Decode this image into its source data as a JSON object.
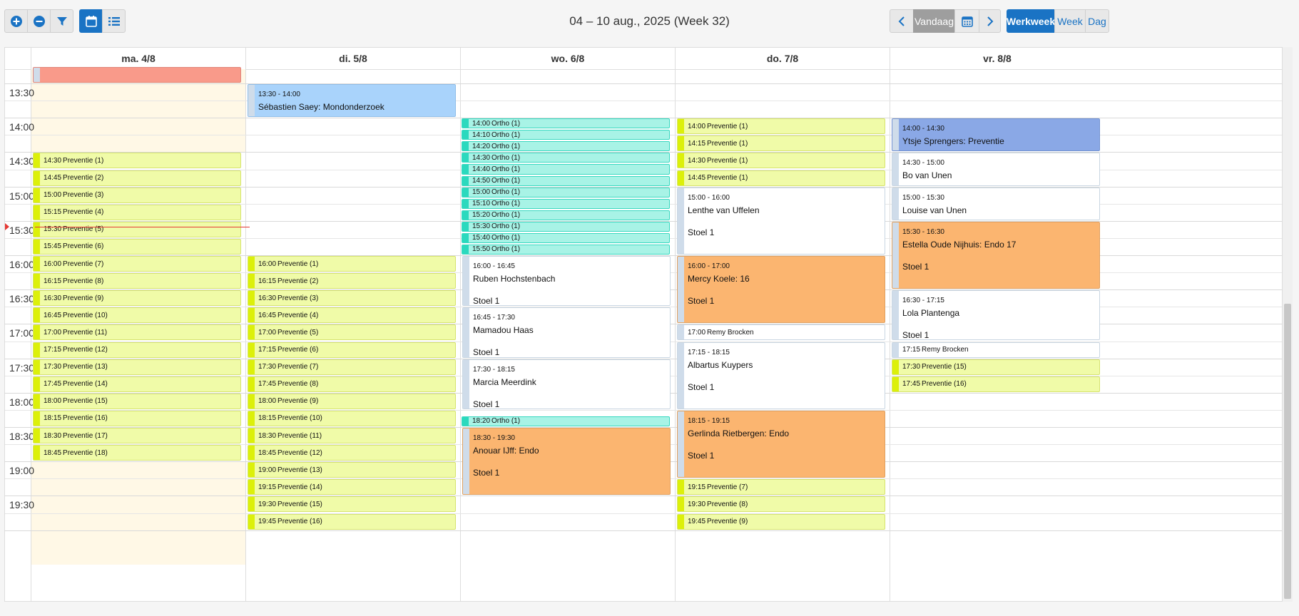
{
  "toolbar": {
    "add_icon": "plus-circle-icon",
    "remove_icon": "minus-circle-icon",
    "filter_icon": "filter-icon",
    "calendar_view_icon": "calendar-icon",
    "list_view_icon": "list-icon"
  },
  "title": "04 – 10 aug., 2025 (Week 32)",
  "nav": {
    "prev_icon": "chevron-left-icon",
    "today_label": "Vandaag",
    "datepicker_icon": "calendar-icon",
    "next_icon": "chevron-right-icon"
  },
  "views": {
    "workweek_label": "Werkweek",
    "week_label": "Week",
    "day_label": "Dag"
  },
  "days": [
    "ma. 4/8",
    "di. 5/8",
    "wo. 6/8",
    "do. 7/8",
    "vr. 8/8"
  ],
  "times": [
    "13:30",
    "14:00",
    "14:30",
    "15:00",
    "15:30",
    "16:00",
    "16:30",
    "17:00",
    "17:30",
    "18:00",
    "18:30",
    "19:00",
    "19:30"
  ],
  "now_time": "15:35",
  "colors": {
    "accent": "#1a73c4",
    "preventie": "#f0fba8",
    "ortho": "#a8f3e6",
    "orange": "#fbb570",
    "light_blue": "#a9d3fb",
    "blue": "#8aa8e6",
    "salmon": "#f99a8a",
    "now_line": "#e53935",
    "offhours": "#fff8e6"
  },
  "events": [
    {
      "day": 0,
      "start": "13:15",
      "end": "13:30",
      "time": "",
      "name": "",
      "kind": "salmon",
      "big": false
    },
    {
      "day": 0,
      "start": "14:30",
      "end": "14:45",
      "time": "14:30",
      "name": "Preventie (1)",
      "kind": "prev",
      "big": false
    },
    {
      "day": 0,
      "start": "14:45",
      "end": "15:00",
      "time": "14:45",
      "name": "Preventie (2)",
      "kind": "prev",
      "big": false
    },
    {
      "day": 0,
      "start": "15:00",
      "end": "15:15",
      "time": "15:00",
      "name": "Preventie (3)",
      "kind": "prev",
      "big": false
    },
    {
      "day": 0,
      "start": "15:15",
      "end": "15:30",
      "time": "15:15",
      "name": "Preventie (4)",
      "kind": "prev",
      "big": false
    },
    {
      "day": 0,
      "start": "15:30",
      "end": "15:45",
      "time": "15:30",
      "name": "Preventie (5)",
      "kind": "prev",
      "big": false
    },
    {
      "day": 0,
      "start": "15:45",
      "end": "16:00",
      "time": "15:45",
      "name": "Preventie (6)",
      "kind": "prev",
      "big": false
    },
    {
      "day": 0,
      "start": "16:00",
      "end": "16:15",
      "time": "16:00",
      "name": "Preventie (7)",
      "kind": "prev",
      "big": false
    },
    {
      "day": 0,
      "start": "16:15",
      "end": "16:30",
      "time": "16:15",
      "name": "Preventie (8)",
      "kind": "prev",
      "big": false
    },
    {
      "day": 0,
      "start": "16:30",
      "end": "16:45",
      "time": "16:30",
      "name": "Preventie (9)",
      "kind": "prev",
      "big": false
    },
    {
      "day": 0,
      "start": "16:45",
      "end": "17:00",
      "time": "16:45",
      "name": "Preventie (10)",
      "kind": "prev",
      "big": false
    },
    {
      "day": 0,
      "start": "17:00",
      "end": "17:15",
      "time": "17:00",
      "name": "Preventie (11)",
      "kind": "prev",
      "big": false
    },
    {
      "day": 0,
      "start": "17:15",
      "end": "17:30",
      "time": "17:15",
      "name": "Preventie (12)",
      "kind": "prev",
      "big": false
    },
    {
      "day": 0,
      "start": "17:30",
      "end": "17:45",
      "time": "17:30",
      "name": "Preventie (13)",
      "kind": "prev",
      "big": false
    },
    {
      "day": 0,
      "start": "17:45",
      "end": "18:00",
      "time": "17:45",
      "name": "Preventie (14)",
      "kind": "prev",
      "big": false
    },
    {
      "day": 0,
      "start": "18:00",
      "end": "18:15",
      "time": "18:00",
      "name": "Preventie (15)",
      "kind": "prev",
      "big": false
    },
    {
      "day": 0,
      "start": "18:15",
      "end": "18:30",
      "time": "18:15",
      "name": "Preventie (16)",
      "kind": "prev",
      "big": false
    },
    {
      "day": 0,
      "start": "18:30",
      "end": "18:45",
      "time": "18:30",
      "name": "Preventie (17)",
      "kind": "prev",
      "big": false
    },
    {
      "day": 0,
      "start": "18:45",
      "end": "19:00",
      "time": "18:45",
      "name": "Preventie (18)",
      "kind": "prev",
      "big": false
    },
    {
      "day": 1,
      "start": "13:30",
      "end": "14:00",
      "time": "13:30 - 14:00",
      "name": "Sébastien Saey: Mondonderzoek",
      "kind": "lblue",
      "big": true
    },
    {
      "day": 1,
      "start": "16:00",
      "end": "16:15",
      "time": "16:00",
      "name": "Preventie (1)",
      "kind": "prev",
      "big": false
    },
    {
      "day": 1,
      "start": "16:15",
      "end": "16:30",
      "time": "16:15",
      "name": "Preventie (2)",
      "kind": "prev",
      "big": false
    },
    {
      "day": 1,
      "start": "16:30",
      "end": "16:45",
      "time": "16:30",
      "name": "Preventie (3)",
      "kind": "prev",
      "big": false
    },
    {
      "day": 1,
      "start": "16:45",
      "end": "17:00",
      "time": "16:45",
      "name": "Preventie (4)",
      "kind": "prev",
      "big": false
    },
    {
      "day": 1,
      "start": "17:00",
      "end": "17:15",
      "time": "17:00",
      "name": "Preventie (5)",
      "kind": "prev",
      "big": false
    },
    {
      "day": 1,
      "start": "17:15",
      "end": "17:30",
      "time": "17:15",
      "name": "Preventie (6)",
      "kind": "prev",
      "big": false
    },
    {
      "day": 1,
      "start": "17:30",
      "end": "17:45",
      "time": "17:30",
      "name": "Preventie (7)",
      "kind": "prev",
      "big": false
    },
    {
      "day": 1,
      "start": "17:45",
      "end": "18:00",
      "time": "17:45",
      "name": "Preventie (8)",
      "kind": "prev",
      "big": false
    },
    {
      "day": 1,
      "start": "18:00",
      "end": "18:15",
      "time": "18:00",
      "name": "Preventie (9)",
      "kind": "prev",
      "big": false
    },
    {
      "day": 1,
      "start": "18:15",
      "end": "18:30",
      "time": "18:15",
      "name": "Preventie (10)",
      "kind": "prev",
      "big": false
    },
    {
      "day": 1,
      "start": "18:30",
      "end": "18:45",
      "time": "18:30",
      "name": "Preventie (11)",
      "kind": "prev",
      "big": false
    },
    {
      "day": 1,
      "start": "18:45",
      "end": "19:00",
      "time": "18:45",
      "name": "Preventie (12)",
      "kind": "prev",
      "big": false
    },
    {
      "day": 1,
      "start": "19:00",
      "end": "19:15",
      "time": "19:00",
      "name": "Preventie (13)",
      "kind": "prev",
      "big": false
    },
    {
      "day": 1,
      "start": "19:15",
      "end": "19:30",
      "time": "19:15",
      "name": "Preventie (14)",
      "kind": "prev",
      "big": false
    },
    {
      "day": 1,
      "start": "19:30",
      "end": "19:45",
      "time": "19:30",
      "name": "Preventie (15)",
      "kind": "prev",
      "big": false
    },
    {
      "day": 1,
      "start": "19:45",
      "end": "20:00",
      "time": "19:45",
      "name": "Preventie (16)",
      "kind": "prev",
      "big": false
    },
    {
      "day": 2,
      "start": "14:00",
      "end": "14:10",
      "time": "14:00",
      "name": "Ortho (1)",
      "kind": "ortho",
      "big": false
    },
    {
      "day": 2,
      "start": "14:10",
      "end": "14:20",
      "time": "14:10",
      "name": "Ortho (1)",
      "kind": "ortho",
      "big": false
    },
    {
      "day": 2,
      "start": "14:20",
      "end": "14:30",
      "time": "14:20",
      "name": "Ortho (1)",
      "kind": "ortho",
      "big": false
    },
    {
      "day": 2,
      "start": "14:30",
      "end": "14:40",
      "time": "14:30",
      "name": "Ortho (1)",
      "kind": "ortho",
      "big": false
    },
    {
      "day": 2,
      "start": "14:40",
      "end": "14:50",
      "time": "14:40",
      "name": "Ortho (1)",
      "kind": "ortho",
      "big": false
    },
    {
      "day": 2,
      "start": "14:50",
      "end": "15:00",
      "time": "14:50",
      "name": "Ortho (1)",
      "kind": "ortho",
      "big": false
    },
    {
      "day": 2,
      "start": "15:00",
      "end": "15:10",
      "time": "15:00",
      "name": "Ortho (1)",
      "kind": "ortho",
      "big": false
    },
    {
      "day": 2,
      "start": "15:10",
      "end": "15:20",
      "time": "15:10",
      "name": "Ortho (1)",
      "kind": "ortho",
      "big": false
    },
    {
      "day": 2,
      "start": "15:20",
      "end": "15:30",
      "time": "15:20",
      "name": "Ortho (1)",
      "kind": "ortho",
      "big": false
    },
    {
      "day": 2,
      "start": "15:30",
      "end": "15:40",
      "time": "15:30",
      "name": "Ortho (1)",
      "kind": "ortho",
      "big": false
    },
    {
      "day": 2,
      "start": "15:40",
      "end": "15:50",
      "time": "15:40",
      "name": "Ortho (1)",
      "kind": "ortho",
      "big": false
    },
    {
      "day": 2,
      "start": "15:50",
      "end": "16:00",
      "time": "15:50",
      "name": "Ortho (1)",
      "kind": "ortho",
      "big": false
    },
    {
      "day": 2,
      "start": "16:00",
      "end": "16:45",
      "time": "16:00 - 16:45",
      "name": "Ruben Hochstenbach",
      "sub": "Stoel 1",
      "kind": "whiteev",
      "big": true
    },
    {
      "day": 2,
      "start": "16:45",
      "end": "17:30",
      "time": "16:45 - 17:30",
      "name": "Mamadou Haas",
      "sub": "Stoel 1",
      "kind": "whiteev",
      "big": true
    },
    {
      "day": 2,
      "start": "17:30",
      "end": "18:15",
      "time": "17:30 - 18:15",
      "name": "Marcia Meerdink",
      "sub": "Stoel 1",
      "kind": "whiteev",
      "big": true
    },
    {
      "day": 2,
      "start": "18:20",
      "end": "18:30",
      "time": "18:20",
      "name": "Ortho (1)",
      "kind": "ortho",
      "big": false
    },
    {
      "day": 2,
      "start": "18:30",
      "end": "19:30",
      "time": "18:30 - 19:30",
      "name": "Anouar IJff: Endo",
      "sub": "Stoel 1",
      "kind": "orange",
      "big": true
    },
    {
      "day": 3,
      "start": "14:00",
      "end": "14:15",
      "time": "14:00",
      "name": "Preventie (1)",
      "kind": "prev",
      "big": false
    },
    {
      "day": 3,
      "start": "14:15",
      "end": "14:30",
      "time": "14:15",
      "name": "Preventie (1)",
      "kind": "prev",
      "big": false
    },
    {
      "day": 3,
      "start": "14:30",
      "end": "14:45",
      "time": "14:30",
      "name": "Preventie (1)",
      "kind": "prev",
      "big": false
    },
    {
      "day": 3,
      "start": "14:45",
      "end": "15:00",
      "time": "14:45",
      "name": "Preventie (1)",
      "kind": "prev",
      "big": false
    },
    {
      "day": 3,
      "start": "15:00",
      "end": "16:00",
      "time": "15:00 - 16:00",
      "name": "Lenthe van Uffelen",
      "sub": "Stoel 1",
      "kind": "whiteev",
      "big": true
    },
    {
      "day": 3,
      "start": "16:00",
      "end": "17:00",
      "time": "16:00 - 17:00",
      "name": "Mercy Koele: 16",
      "sub": "Stoel 1",
      "kind": "orange",
      "big": true
    },
    {
      "day": 3,
      "start": "17:00",
      "end": "17:15",
      "time": "17:00",
      "name": "Remy Brocken",
      "kind": "whiteev",
      "big": false
    },
    {
      "day": 3,
      "start": "17:15",
      "end": "18:15",
      "time": "17:15 - 18:15",
      "name": "Albartus Kuypers",
      "sub": "Stoel 1",
      "kind": "whiteev",
      "big": true
    },
    {
      "day": 3,
      "start": "18:15",
      "end": "19:15",
      "time": "18:15 - 19:15",
      "name": "Gerlinda Rietbergen: Endo",
      "sub": "Stoel 1",
      "kind": "orange",
      "big": true
    },
    {
      "day": 3,
      "start": "19:15",
      "end": "19:30",
      "time": "19:15",
      "name": "Preventie (7)",
      "kind": "prev",
      "big": false
    },
    {
      "day": 3,
      "start": "19:30",
      "end": "19:45",
      "time": "19:30",
      "name": "Preventie (8)",
      "kind": "prev",
      "big": false
    },
    {
      "day": 3,
      "start": "19:45",
      "end": "20:00",
      "time": "19:45",
      "name": "Preventie (9)",
      "kind": "prev",
      "big": false
    },
    {
      "day": 4,
      "start": "14:00",
      "end": "14:30",
      "time": "14:00 - 14:30",
      "name": "Ytsje Sprengers: Preventie",
      "kind": "blue2",
      "big": true
    },
    {
      "day": 4,
      "start": "14:30",
      "end": "15:00",
      "time": "14:30 - 15:00",
      "name": "Bo van Unen",
      "kind": "whiteev",
      "big": true
    },
    {
      "day": 4,
      "start": "15:00",
      "end": "15:30",
      "time": "15:00 - 15:30",
      "name": "Louise van Unen",
      "kind": "whiteev",
      "big": true
    },
    {
      "day": 4,
      "start": "15:30",
      "end": "16:30",
      "time": "15:30 - 16:30",
      "name": "Estella Oude Nijhuis: Endo 17",
      "sub": "Stoel 1",
      "kind": "orange",
      "big": true
    },
    {
      "day": 4,
      "start": "16:30",
      "end": "17:15",
      "time": "16:30 - 17:15",
      "name": "Lola Plantenga",
      "sub": "Stoel 1",
      "kind": "whiteev",
      "big": true
    },
    {
      "day": 4,
      "start": "17:15",
      "end": "17:30",
      "time": "17:15",
      "name": "Remy Brocken",
      "kind": "whiteev",
      "big": false
    },
    {
      "day": 4,
      "start": "17:30",
      "end": "17:45",
      "time": "17:30",
      "name": "Preventie (15)",
      "kind": "prev",
      "big": false
    },
    {
      "day": 4,
      "start": "17:45",
      "end": "18:00",
      "time": "17:45",
      "name": "Preventie (16)",
      "kind": "prev",
      "big": false
    }
  ]
}
